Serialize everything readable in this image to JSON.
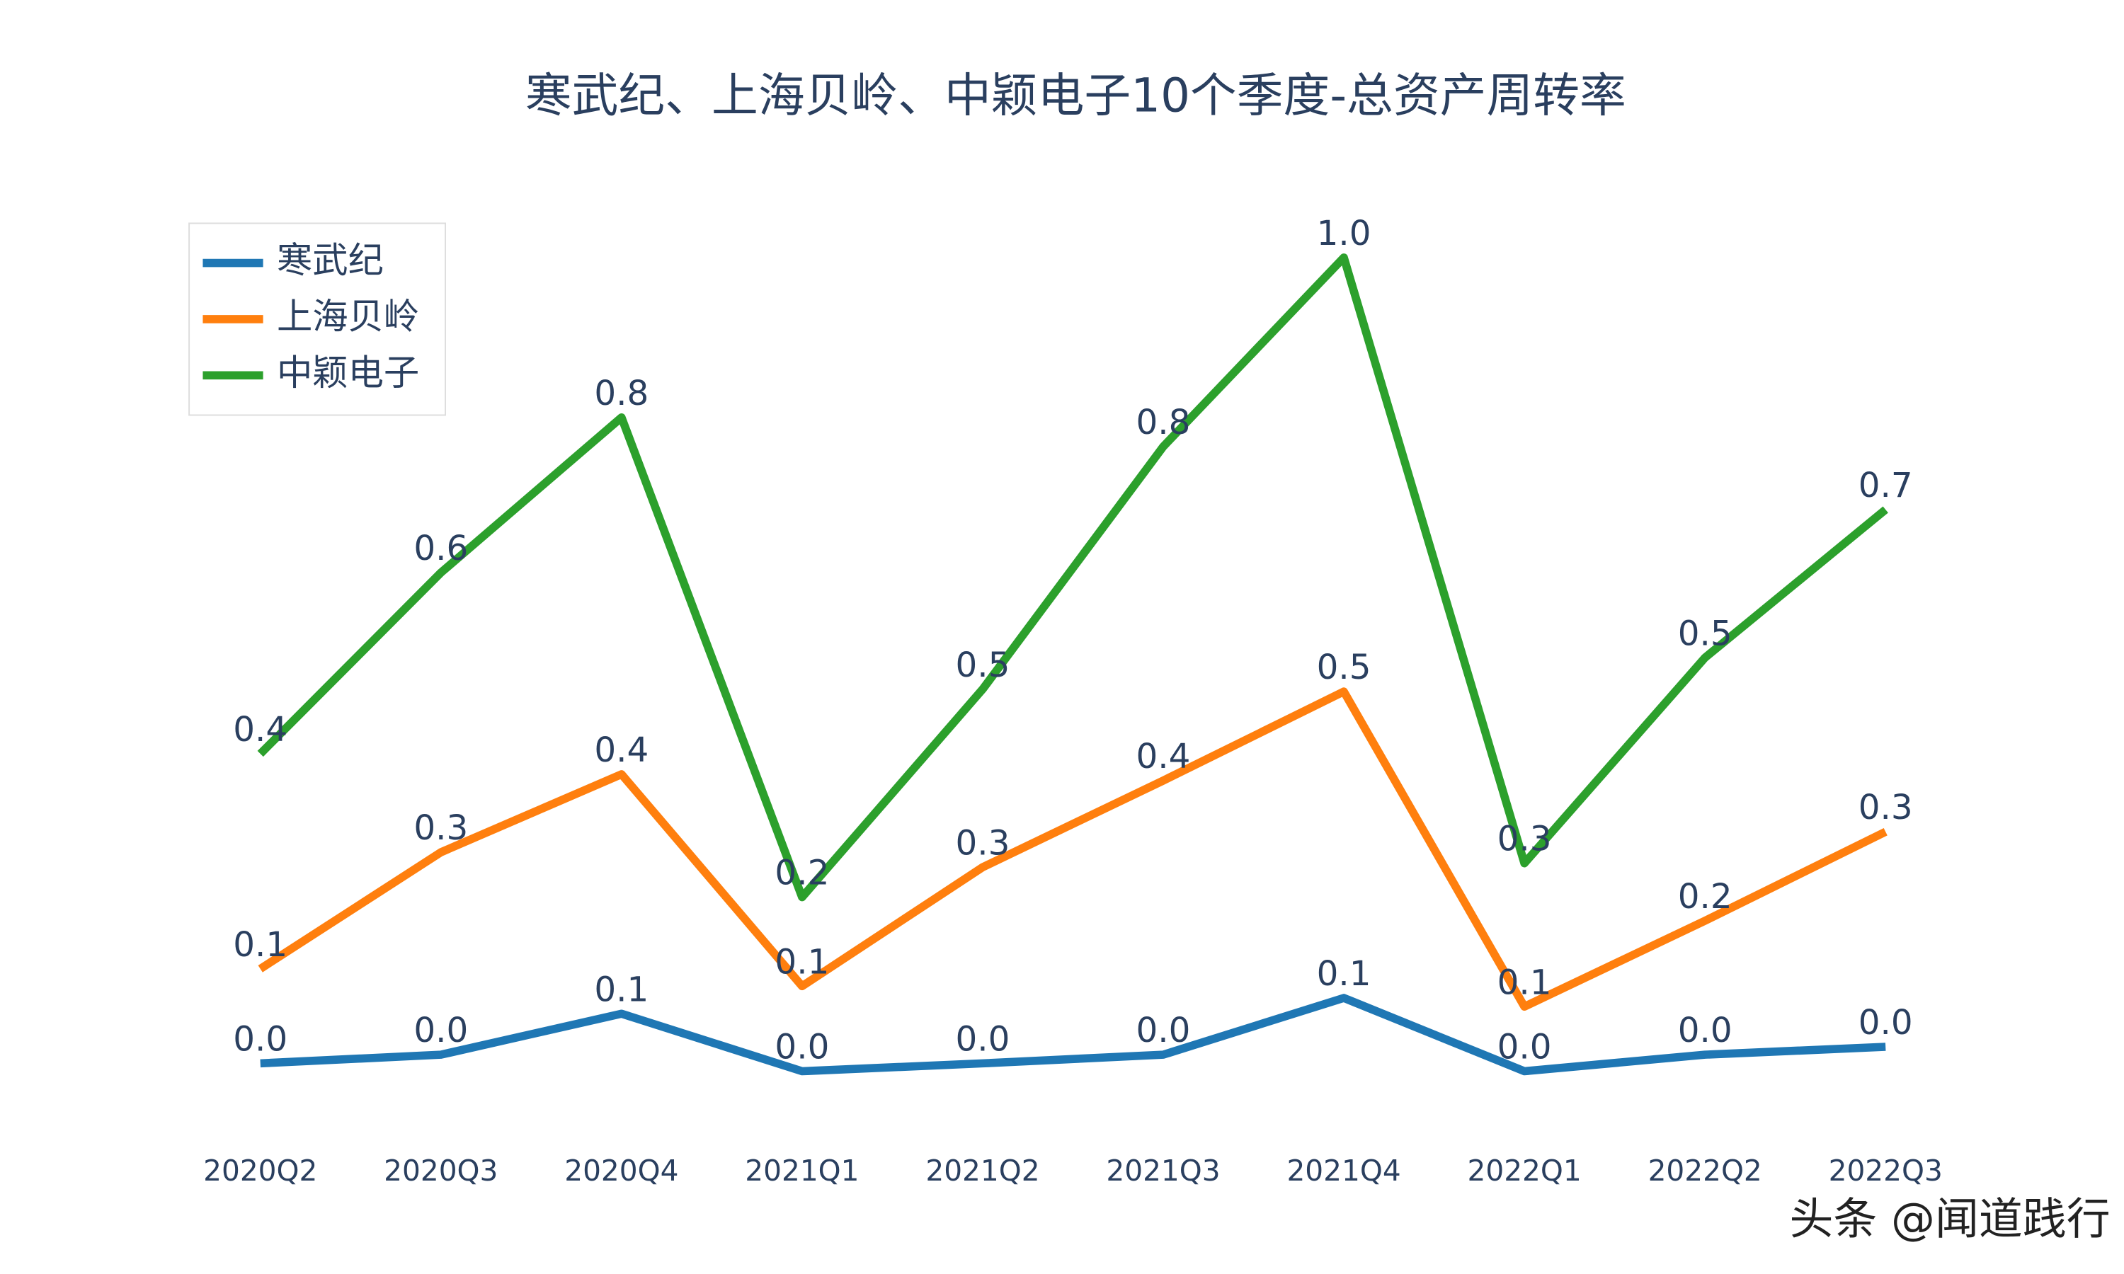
{
  "chart_data": {
    "type": "line",
    "title": "寒武纪、上海贝岭、中颖电子10个季度-总资产周转率",
    "categories": [
      "2020Q2",
      "2020Q3",
      "2020Q4",
      "2021Q1",
      "2021Q2",
      "2021Q3",
      "2021Q4",
      "2022Q1",
      "2022Q2",
      "2022Q3"
    ],
    "series": [
      {
        "name": "寒武纪",
        "color": "#1f77b4",
        "values": [
          0.017,
          0.028,
          0.08,
          0.007,
          0.017,
          0.028,
          0.1,
          0.007,
          0.028,
          0.038
        ],
        "value_labels": [
          "0.0",
          "0.0",
          "0.1",
          "0.0",
          "0.0",
          "0.0",
          "0.1",
          "0.0",
          "0.0",
          "0.0"
        ]
      },
      {
        "name": "上海贝岭",
        "color": "#ff7f0e",
        "values": [
          0.137,
          0.285,
          0.384,
          0.115,
          0.266,
          0.376,
          0.489,
          0.089,
          0.198,
          0.311
        ],
        "value_labels": [
          "0.1",
          "0.3",
          "0.4",
          "0.1",
          "0.3",
          "0.4",
          "0.5",
          "0.1",
          "0.2",
          "0.3"
        ]
      },
      {
        "name": "中颖电子",
        "color": "#2ca02c",
        "values": [
          0.41,
          0.64,
          0.837,
          0.228,
          0.492,
          0.8,
          1.04,
          0.271,
          0.532,
          0.72
        ],
        "value_labels": [
          "0.4",
          "0.6",
          "0.8",
          "0.2",
          "0.5",
          "0.8",
          "1.0",
          "0.3",
          "0.5",
          "0.7"
        ]
      }
    ],
    "ylim": [
      -0.06,
      1.1
    ],
    "legend": "top-left"
  },
  "watermark": "头条 @闻道践行"
}
